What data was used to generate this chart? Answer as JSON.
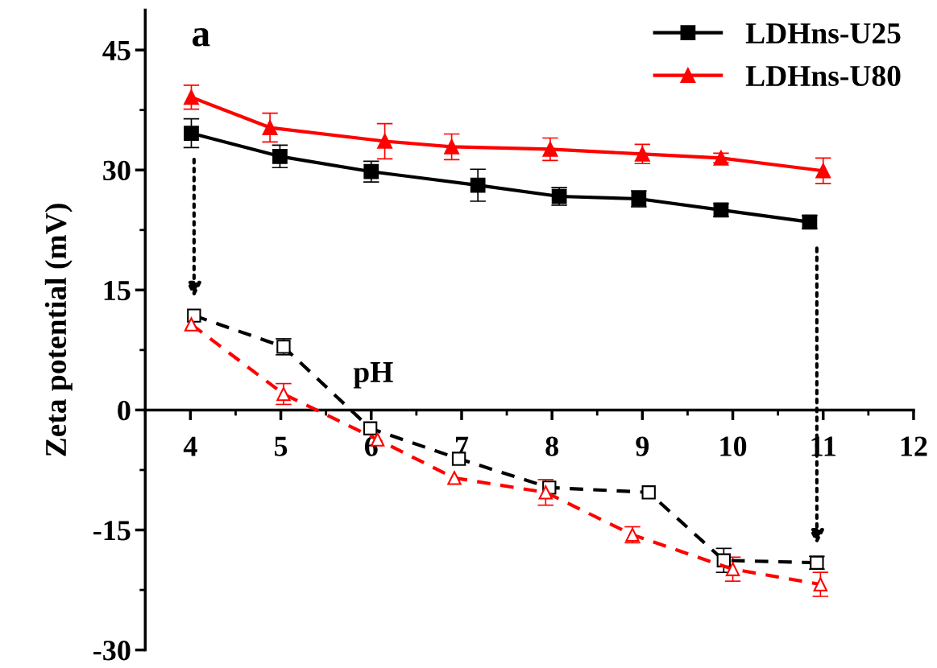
{
  "chart_data": {
    "type": "line",
    "xlabel": "pH",
    "ylabel": "Zeta potential (mV)",
    "annotations": [
      "a"
    ],
    "xlim": [
      3.5,
      12
    ],
    "xticks": [
      4,
      5,
      6,
      7,
      8,
      9,
      10,
      11,
      12
    ],
    "ylim": [
      -30,
      50
    ],
    "yticks": [
      -30,
      -15,
      0,
      15,
      30,
      45
    ],
    "legend": "top right",
    "grid": false,
    "series": [
      {
        "name": "LDHns-U25",
        "color": "#000000",
        "marker": "square",
        "line_style": "solid",
        "x": [
          4.01,
          4.99,
          6.0,
          7.18,
          8.08,
          8.96,
          9.87,
          10.85
        ],
        "values": [
          34.6,
          31.7,
          29.8,
          28.1,
          26.7,
          26.4,
          25.0,
          23.5
        ],
        "errors": [
          1.8,
          1.4,
          1.3,
          2.0,
          1.1,
          1.0,
          0.8,
          0.8
        ]
      },
      {
        "name": "LDHns-U80",
        "color": "#ff0000",
        "marker": "triangle",
        "line_style": "solid",
        "x": [
          4.01,
          4.88,
          6.15,
          6.89,
          7.98,
          9.0,
          9.87,
          11.0
        ],
        "values": [
          39.1,
          35.3,
          33.6,
          32.9,
          32.6,
          32.0,
          31.5,
          29.9
        ],
        "errors": [
          1.5,
          1.8,
          2.2,
          1.6,
          1.4,
          1.2,
          0.6,
          1.6
        ]
      },
      {
        "color": "#000000",
        "marker": "square",
        "line_style": "dashed",
        "x": [
          4.04,
          5.03,
          5.99,
          6.97,
          7.97,
          9.07,
          9.9,
          10.93
        ],
        "values": [
          11.8,
          7.9,
          -2.3,
          -6.1,
          -9.7,
          -10.3,
          -18.8,
          -19.1
        ],
        "errors": [
          null,
          1.0,
          null,
          null,
          null,
          null,
          1.5,
          0.8
        ]
      },
      {
        "color": "#ff0000",
        "marker": "triangle",
        "line_style": "dashed",
        "x": [
          4.01,
          5.03,
          6.07,
          6.92,
          7.93,
          8.89,
          10.0,
          10.97
        ],
        "values": [
          10.7,
          2.0,
          -3.7,
          -8.5,
          -10.3,
          -15.6,
          -19.9,
          -21.8
        ],
        "errors": [
          null,
          1.3,
          null,
          null,
          1.6,
          1.0,
          1.5,
          1.5
        ]
      }
    ]
  }
}
